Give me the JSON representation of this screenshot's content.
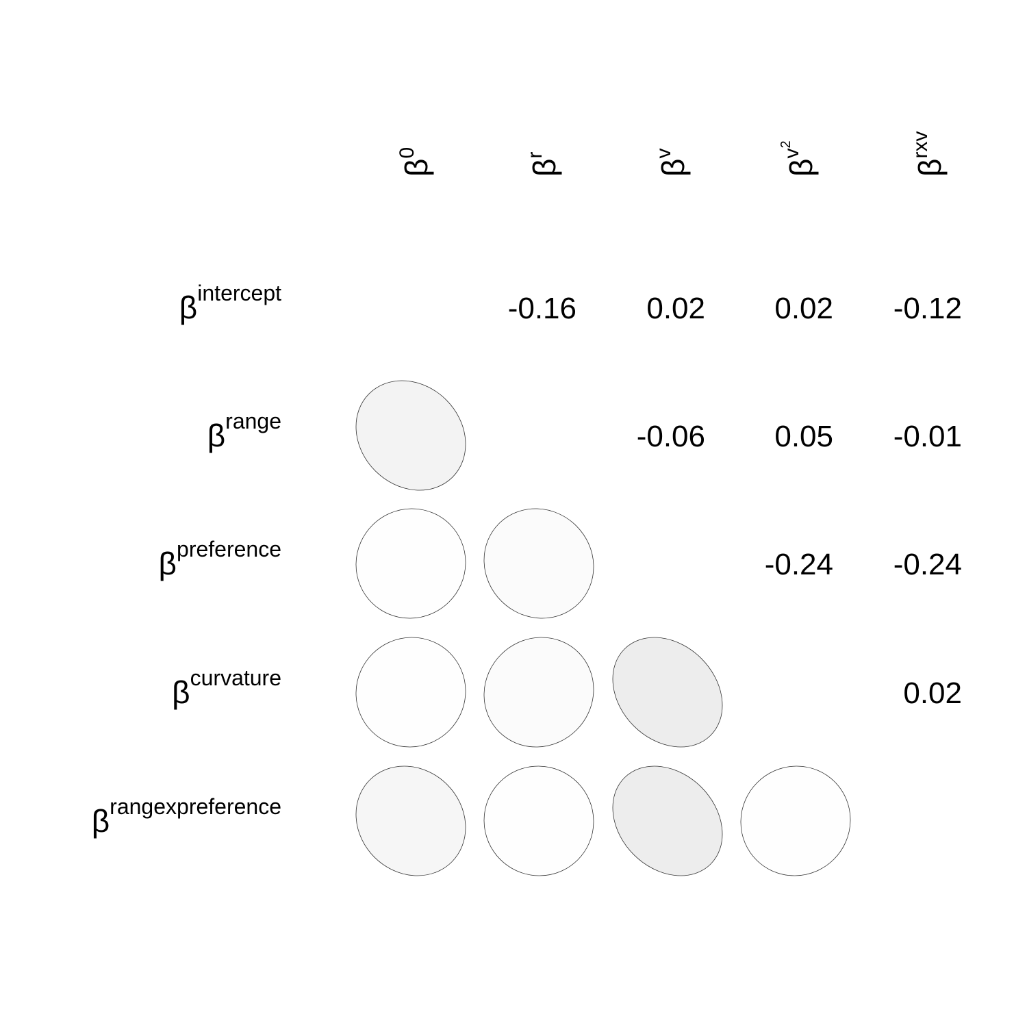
{
  "chart_data": {
    "type": "correlation-matrix",
    "base_symbol": "β",
    "columns": [
      {
        "superscript": "0",
        "square": ""
      },
      {
        "superscript": "r",
        "square": ""
      },
      {
        "superscript": "v",
        "square": ""
      },
      {
        "superscript": "v",
        "square": "2"
      },
      {
        "superscript": "rxv",
        "square": ""
      }
    ],
    "rows": [
      {
        "superscript": "intercept"
      },
      {
        "superscript": "range"
      },
      {
        "superscript": "preference"
      },
      {
        "superscript": "curvature"
      },
      {
        "superscript": "rangexpreference"
      }
    ],
    "upper_values": [
      {
        "row": 0,
        "col": 1,
        "value": -0.16,
        "text": "-0.16"
      },
      {
        "row": 0,
        "col": 2,
        "value": 0.02,
        "text": "0.02"
      },
      {
        "row": 0,
        "col": 3,
        "value": 0.02,
        "text": "0.02"
      },
      {
        "row": 0,
        "col": 4,
        "value": -0.12,
        "text": "-0.12"
      },
      {
        "row": 1,
        "col": 2,
        "value": -0.06,
        "text": "-0.06"
      },
      {
        "row": 1,
        "col": 3,
        "value": 0.05,
        "text": "0.05"
      },
      {
        "row": 1,
        "col": 4,
        "value": -0.01,
        "text": "-0.01"
      },
      {
        "row": 2,
        "col": 3,
        "value": -0.24,
        "text": "-0.24"
      },
      {
        "row": 2,
        "col": 4,
        "value": -0.24,
        "text": "-0.24"
      },
      {
        "row": 3,
        "col": 4,
        "value": 0.02,
        "text": "0.02"
      }
    ],
    "lower_ellipses": [
      {
        "row": 1,
        "col": 0,
        "correlation": -0.16
      },
      {
        "row": 2,
        "col": 0,
        "correlation": 0.02
      },
      {
        "row": 2,
        "col": 1,
        "correlation": -0.06
      },
      {
        "row": 3,
        "col": 0,
        "correlation": 0.02
      },
      {
        "row": 3,
        "col": 1,
        "correlation": 0.05
      },
      {
        "row": 3,
        "col": 2,
        "correlation": -0.24
      },
      {
        "row": 4,
        "col": 0,
        "correlation": -0.12
      },
      {
        "row": 4,
        "col": 1,
        "correlation": -0.01
      },
      {
        "row": 4,
        "col": 2,
        "correlation": -0.24
      },
      {
        "row": 4,
        "col": 3,
        "correlation": 0.02
      }
    ]
  }
}
